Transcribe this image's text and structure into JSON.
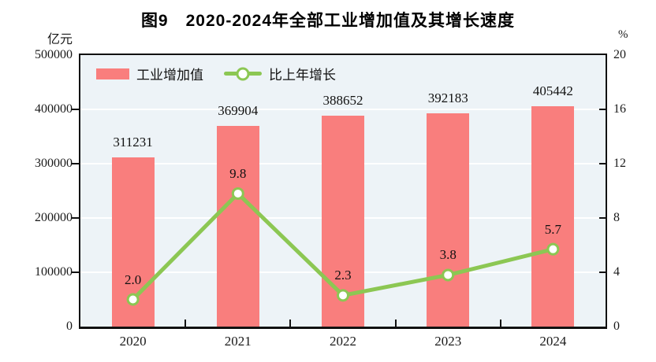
{
  "title": "图9　2020-2024年全部工业增加值及其增长速度",
  "chart_data": {
    "type": "bar",
    "combo": "bar+line",
    "categories": [
      "2020",
      "2021",
      "2022",
      "2023",
      "2024"
    ],
    "series": [
      {
        "name": "工业增加值",
        "type": "bar",
        "axis": "left",
        "values": [
          311231,
          369904,
          388652,
          392183,
          405442
        ],
        "color": "#F97E7D"
      },
      {
        "name": "比上年增长",
        "type": "line",
        "axis": "right",
        "values": [
          2.0,
          9.8,
          2.3,
          3.8,
          5.7
        ],
        "color": "#8CC753",
        "marker": "white-circle"
      }
    ],
    "left_axis": {
      "unit": "亿元",
      "min": 0,
      "max": 500000,
      "ticks": [
        0,
        100000,
        200000,
        300000,
        400000,
        500000
      ]
    },
    "right_axis": {
      "unit": "%",
      "min": 0,
      "max": 20,
      "ticks": [
        0,
        4,
        8,
        12,
        16,
        20
      ]
    },
    "grid": true,
    "legend_position": "top-left",
    "colors": {
      "plot_bg": "#EDF3F7",
      "gridline": "#FFFFFF",
      "axis": "#111111",
      "label_text": "#111111"
    }
  }
}
